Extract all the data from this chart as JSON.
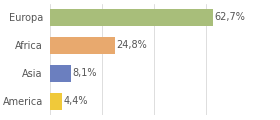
{
  "categories": [
    "America",
    "Asia",
    "Africa",
    "Europa"
  ],
  "values": [
    4.4,
    8.1,
    24.8,
    62.7
  ],
  "labels": [
    "4,4%",
    "8,1%",
    "24,8%",
    "62,7%"
  ],
  "bar_colors": [
    "#f0c93a",
    "#6b7fbf",
    "#e8a96e",
    "#a8be7a"
  ],
  "xlim": [
    0,
    80
  ],
  "background_color": "#ffffff",
  "bar_height": 0.62,
  "label_fontsize": 7.0,
  "tick_fontsize": 7.0,
  "grid_color": "#d0d0d0",
  "text_color": "#555555"
}
